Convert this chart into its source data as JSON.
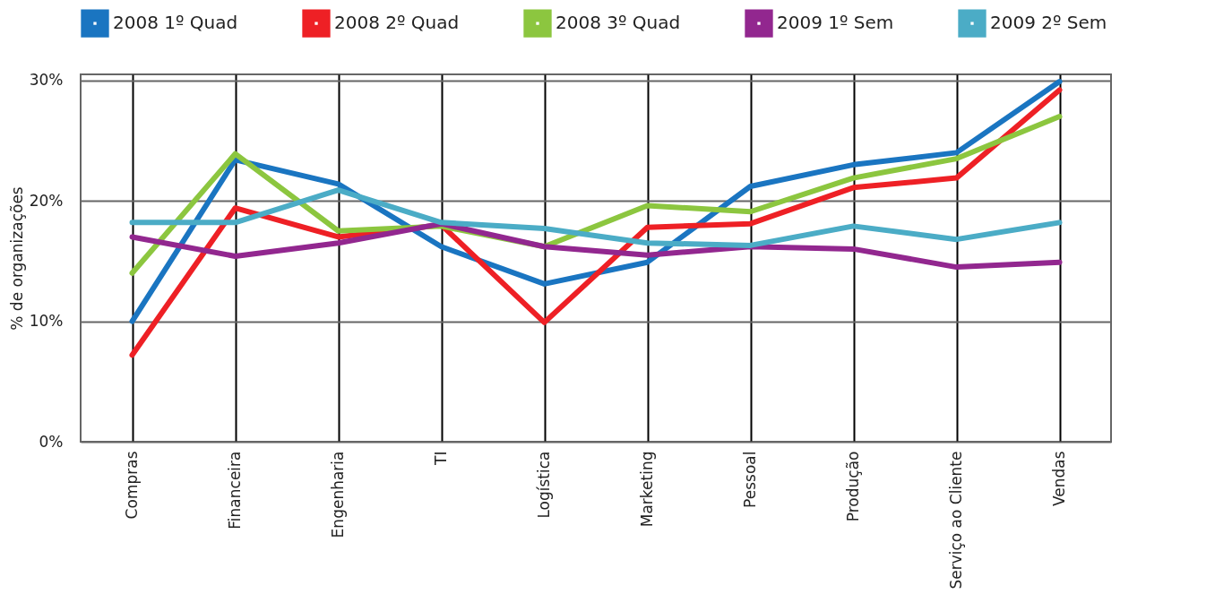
{
  "chart_data": {
    "type": "line",
    "ylabel": "% de organizações",
    "categories": [
      "Compras",
      "Financeira",
      "Engenharia",
      "TI",
      "Logística",
      "Marketing",
      "Pessoal",
      "Produção",
      "Serviço ao Cliente",
      "Vendas"
    ],
    "series": [
      {
        "name": "2008 1º Quad",
        "color": "#1a75c1",
        "values": [
          10,
          23.4,
          21.4,
          16.2,
          13.1,
          14.9,
          21.2,
          23.0,
          24.0,
          29.9
        ]
      },
      {
        "name": "2008 2º Quad",
        "color": "#ee2025",
        "values": [
          7.2,
          19.4,
          17.0,
          18.0,
          9.9,
          17.8,
          18.1,
          21.1,
          21.9,
          29.2
        ]
      },
      {
        "name": "2008 3º Quad",
        "color": "#8cc63f",
        "values": [
          14.0,
          23.9,
          17.5,
          17.9,
          16.2,
          19.6,
          19.1,
          21.9,
          23.5,
          27.0
        ]
      },
      {
        "name": "2009 1º Sem",
        "color": "#92278f",
        "values": [
          17.0,
          15.4,
          16.5,
          18.1,
          16.2,
          15.5,
          16.2,
          16.0,
          14.5,
          14.9
        ]
      },
      {
        "name": "2009 2º Sem",
        "color": "#4bacc6",
        "values": [
          18.2,
          18.2,
          20.9,
          18.2,
          17.7,
          16.5,
          16.3,
          17.9,
          16.8,
          18.2
        ]
      }
    ],
    "ylim": [
      0,
      30.5
    ],
    "yticks": [
      {
        "value": 0,
        "label": "0%"
      },
      {
        "value": 10,
        "label": "10%"
      },
      {
        "value": 20,
        "label": "20%"
      },
      {
        "value": 30,
        "label": "30%"
      }
    ],
    "grid": true,
    "legend": "top"
  }
}
